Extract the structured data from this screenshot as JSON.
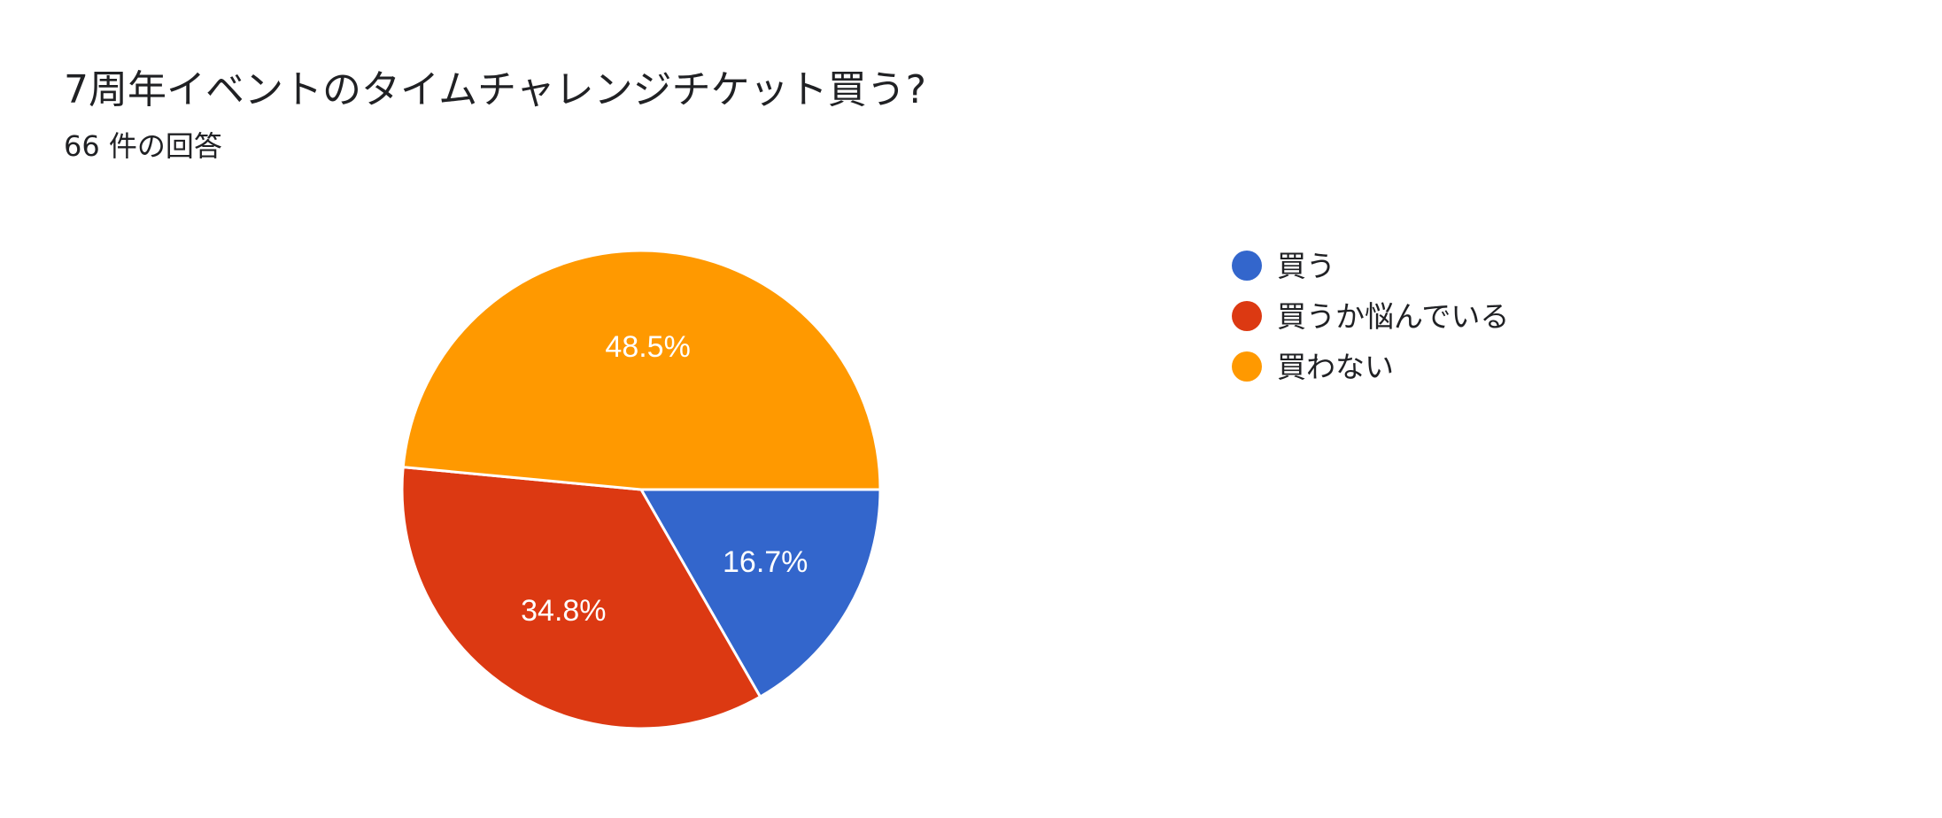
{
  "header": {
    "title": "7周年イベントのタイムチャレンジチケット買う?",
    "response_count": "66 件の回答"
  },
  "chart_data": {
    "type": "pie",
    "categories": [
      "買う",
      "買うか悩んでいる",
      "買わない"
    ],
    "values": [
      16.7,
      34.8,
      48.5
    ],
    "value_labels": [
      "16.7%",
      "34.8%",
      "48.5%"
    ],
    "colors": [
      "#3366cc",
      "#dc3912",
      "#ff9900"
    ],
    "legend_position": "right"
  }
}
